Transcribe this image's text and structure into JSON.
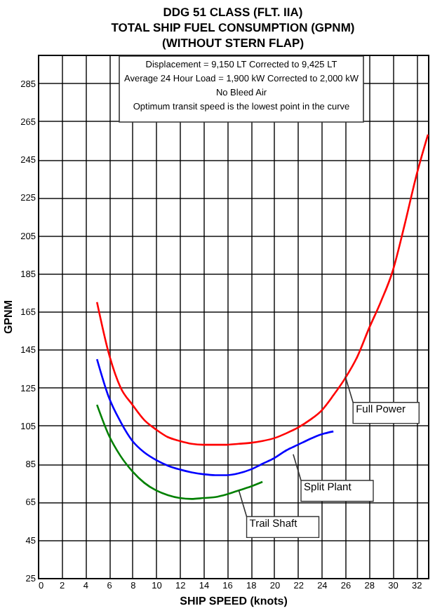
{
  "chart_data": {
    "type": "line",
    "title": [
      "DDG 51 CLASS (FLT. IIA)",
      "TOTAL SHIP FUEL CONSUMPTION (GPNM)",
      "(WITHOUT STERN FLAP)"
    ],
    "xlabel": "SHIP SPEED (knots)",
    "ylabel": "GPNM",
    "annotations": [
      [
        "Displacement = 9,150 LT Corrected to 9,425 LT",
        "Average 24 Hour Load = 1,900 kW Corrected to 2,000 kW",
        "No Bleed Air",
        "Optimum transit speed is the lowest point in the curve"
      ],
      {
        "text": "Full Power",
        "x": 26,
        "y": 131
      },
      {
        "text": "Split Plant",
        "x": 21.6,
        "y": 90
      },
      {
        "text": "Trail Shaft",
        "x": 17,
        "y": 71
      }
    ],
    "x": [
      5,
      6,
      7,
      8,
      9,
      10,
      11,
      12,
      13,
      14,
      15,
      16,
      17,
      18,
      19,
      20,
      21,
      22,
      23,
      24,
      25,
      26,
      27,
      28,
      29,
      30,
      31,
      32,
      33
    ],
    "series": [
      {
        "color": "#ff0000",
        "values": [
          170,
          143,
          125,
          116,
          108,
          103,
          99,
          97,
          95.5,
          95,
          95,
          95,
          95.5,
          96,
          97,
          98.5,
          101,
          104,
          108,
          113,
          121,
          130,
          141,
          156,
          170,
          186,
          210,
          236,
          258
        ]
      },
      {
        "color": "#0000ff",
        "values": [
          140,
          120,
          107,
          97,
          91,
          87,
          84,
          82,
          80.5,
          79.5,
          79,
          79,
          80,
          82,
          85,
          88,
          92,
          95,
          98,
          100.5,
          102,
          null,
          null,
          null,
          null,
          null,
          null,
          null,
          null
        ]
      },
      {
        "color": "#008000",
        "values": [
          116,
          100,
          89,
          81,
          75,
          71,
          68.5,
          67,
          66.5,
          67,
          67.5,
          69,
          71,
          73,
          75.5,
          null,
          null,
          null,
          null,
          null,
          null,
          null,
          null,
          null,
          null,
          null,
          null,
          null,
          null
        ]
      }
    ],
    "xlim": [
      0,
      33
    ],
    "ylim": [
      25,
      300
    ],
    "xticks": [
      0,
      2,
      4,
      6,
      8,
      10,
      12,
      14,
      16,
      18,
      20,
      22,
      24,
      26,
      28,
      30,
      32
    ],
    "yticks": [
      25,
      45,
      65,
      85,
      105,
      125,
      145,
      165,
      185,
      205,
      225,
      245,
      265,
      285
    ],
    "grid": true,
    "legend": false,
    "line_style": "solid",
    "marker": "none"
  }
}
